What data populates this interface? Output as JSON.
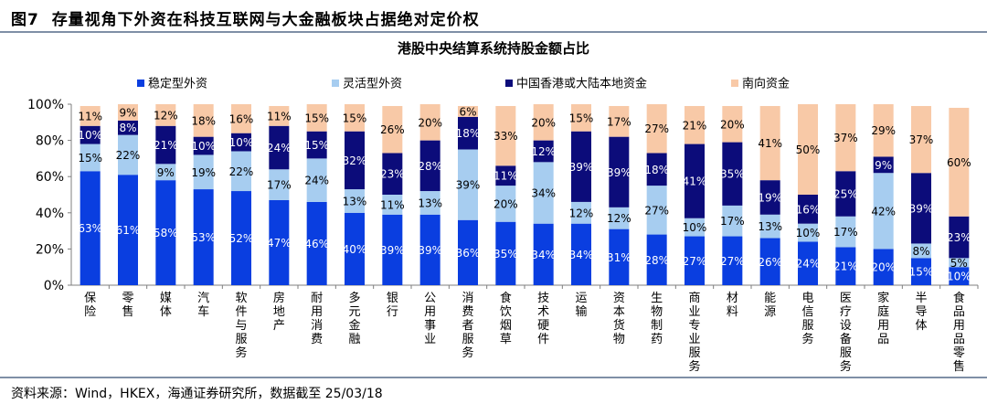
{
  "figure": {
    "label": "图7",
    "title": "存量视角下外资在科技互联网与大金融板块占据绝对定价权",
    "source": "资料来源：Wind，HKEX，海通证券研究所，数据截至 25/03/18"
  },
  "chart_data": {
    "type": "bar",
    "stacked": true,
    "title": "港股中央结算系统持股金额占比",
    "xlabel": "",
    "ylabel": "",
    "ylim": [
      0,
      100
    ],
    "y_ticks": [
      "0%",
      "20%",
      "40%",
      "60%",
      "80%",
      "100%"
    ],
    "legend_position": "top",
    "grid": false,
    "categories": [
      "保险",
      "零售",
      "媒体",
      "汽车",
      "软件与服务",
      "房地产",
      "耐用消费",
      "多元金融",
      "银行",
      "公用事业",
      "消费者服务",
      "食饮烟草",
      "技术硬件",
      "运输",
      "资本货物",
      "生物制药",
      "商业专业服务",
      "材料",
      "能源",
      "电信服务",
      "医疗设备服务",
      "家庭用品",
      "半导体",
      "食品用品零售"
    ],
    "series": [
      {
        "name": "稳定型外资",
        "color": "#0a3ee0",
        "values": [
          63,
          61,
          58,
          53,
          52,
          47,
          46,
          40,
          39,
          39,
          36,
          35,
          34,
          34,
          31,
          28,
          27,
          27,
          26,
          24,
          21,
          20,
          15,
          10
        ],
        "labels": [
          "63%",
          "61%",
          "58%",
          "53%",
          "52%",
          "47%",
          "46%",
          "40%",
          "39%",
          "39%",
          "36%",
          "35%",
          "34%",
          "34%",
          "31%",
          "28%",
          "27%",
          "27%",
          "26%",
          "24%",
          "21%",
          "20%",
          "15%",
          "10%"
        ]
      },
      {
        "name": "灵活型外资",
        "color": "#a7cdf0",
        "values": [
          15,
          22,
          9,
          19,
          22,
          17,
          24,
          13,
          11,
          13,
          39,
          20,
          34,
          12,
          12,
          27,
          10,
          17,
          13,
          10,
          17,
          42,
          8,
          5
        ],
        "labels": [
          "15%",
          "22%",
          "9%",
          "19%",
          "22%",
          "17%",
          "24%",
          "13%",
          "11%",
          "13%",
          "39%",
          "20%",
          "34%",
          "12%",
          "12%",
          "27%",
          "10%",
          "17%",
          "13%",
          "10%",
          "17%",
          "42%",
          "8%",
          "5%"
        ]
      },
      {
        "name": "中国香港或大陆本地资金",
        "color": "#0c0c7a",
        "values": [
          10,
          8,
          21,
          10,
          10,
          24,
          15,
          32,
          23,
          28,
          18,
          11,
          12,
          39,
          39,
          18,
          41,
          35,
          19,
          16,
          25,
          9,
          39,
          23
        ],
        "labels": [
          "10%",
          "8%",
          "21%",
          "10%",
          "10%",
          "24%",
          "15%",
          "32%",
          "23%",
          "28%",
          "18%",
          "11%",
          "12%",
          "39%",
          "39%",
          "18%",
          "41%",
          "35%",
          "19%",
          "16%",
          "25%",
          "9%",
          "39%",
          "23%"
        ]
      },
      {
        "name": "南向资金",
        "color": "#f8c9a7",
        "values": [
          11,
          9,
          12,
          18,
          16,
          11,
          15,
          15,
          26,
          20,
          6,
          33,
          20,
          15,
          17,
          27,
          21,
          20,
          41,
          50,
          37,
          29,
          37,
          60
        ],
        "labels": [
          "11%",
          "9%",
          "12%",
          "18%",
          "16%",
          "11%",
          "15%",
          "15%",
          "26%",
          "20%",
          "6%",
          "33%",
          "20%",
          "15%",
          "17%",
          "27%",
          "21%",
          "20%",
          "41%",
          "50%",
          "37%",
          "29%",
          "37%",
          "60%"
        ]
      }
    ]
  }
}
